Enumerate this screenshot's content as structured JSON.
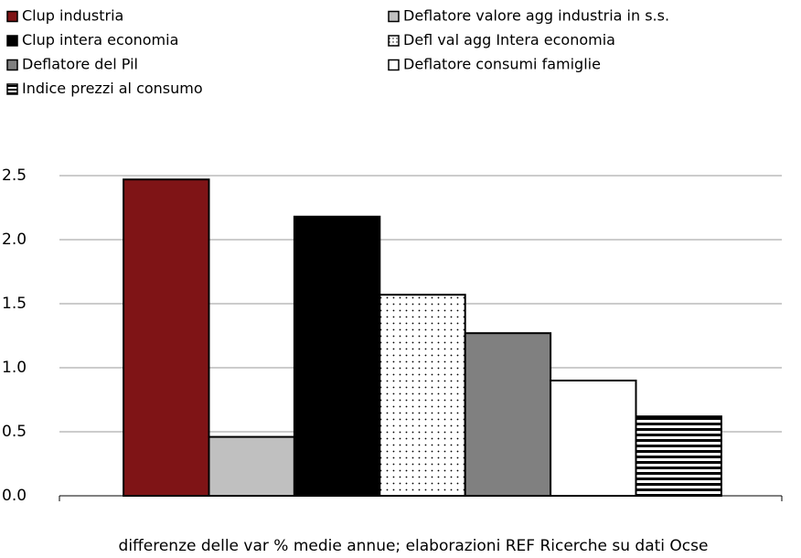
{
  "chart_data": {
    "type": "bar",
    "categories": [
      null
    ],
    "series": [
      {
        "name": "Clup industria",
        "color": "#7f1416",
        "values": [
          2.47
        ]
      },
      {
        "name": "Deflatore valore agg industria in s.s.",
        "color": "#c0c0c0",
        "values": [
          0.46
        ]
      },
      {
        "name": "Clup intera economia",
        "color": "#000000",
        "values": [
          2.18
        ]
      },
      {
        "name": "Defl  val agg Intera economia",
        "color": "#ffffff",
        "pattern": "dots",
        "values": [
          1.57
        ]
      },
      {
        "name": "Deflatore del Pil",
        "color": "#808080",
        "values": [
          1.27
        ]
      },
      {
        "name": "Deflatore consumi  famiglie",
        "color": "#ffffff",
        "values": [
          0.9
        ]
      },
      {
        "name": "Indice prezzi al consumo",
        "color": "#ffffff",
        "pattern": "stripes",
        "values": [
          0.62
        ]
      }
    ],
    "ylim": [
      0,
      2.5
    ],
    "yticks": [
      {
        "value": 0,
        "label": "0.0"
      },
      0.5,
      {
        "value": 1,
        "label": "1.0"
      },
      1.5,
      {
        "value": 2,
        "label": "2.0"
      },
      2.5
    ],
    "grid": true,
    "legend": "top",
    "note": "differenze delle var % medie annue;  elaborazioni REF Ricerche su dati Ocse"
  }
}
